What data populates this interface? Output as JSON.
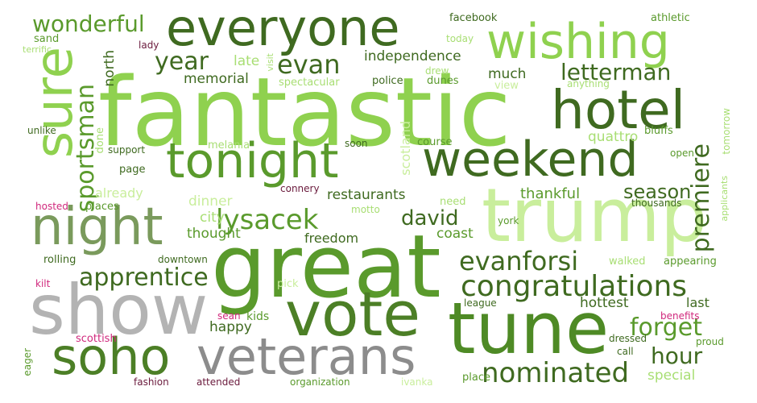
{
  "palette": {
    "dark_green": "#3f6a20",
    "mid_green": "#5a9a2c",
    "light_green": "#8fd14f",
    "pale_green": "#c9ee9c",
    "grey": "#a9a9a9",
    "pink": "#d0287c",
    "maroon": "#6a1a3c"
  },
  "words": {
    "fantastic": "fantastic",
    "great": "great",
    "trump": "trump",
    "show": "show",
    "tune": "tune",
    "vote": "vote",
    "soho": "soho",
    "veterans": "veterans",
    "everyone": "everyone",
    "wishing": "wishing",
    "hotel": "hotel",
    "sure": "sure",
    "tonight": "tonight",
    "weekend": "weekend",
    "night": "night",
    "lysacek": "lysacek",
    "congratulations": "congratulations",
    "nominated": "nominated",
    "evanforsi": "evanforsi",
    "apprentice": "apprentice",
    "premiere": "premiere",
    "sportsman": "sportsman",
    "year": "year",
    "evan": "evan",
    "wonderful": "wonderful",
    "letterman": "letterman",
    "forget": "forget",
    "hour": "hour",
    "david": "david",
    "season": "season",
    "independence": "independence",
    "memorial": "memorial",
    "late": "late",
    "much": "much",
    "north": "north",
    "scotland": "scotland",
    "restaurants": "restaurants",
    "thankful": "thankful",
    "quattro": "quattro",
    "dinner": "dinner",
    "city": "city",
    "thought": "thought",
    "freedom": "freedom",
    "coast": "coast",
    "already": "already",
    "happy": "happy",
    "hottest": "hottest",
    "last": "last",
    "special": "special",
    "kids": "kids",
    "facebook": "facebook",
    "athletic": "athletic",
    "sand": "sand",
    "terrific": "terrific",
    "lady": "lady",
    "visit": "visit",
    "today": "today",
    "drew": "drew",
    "dunes": "dunes",
    "view": "view",
    "anything": "anything",
    "police": "police",
    "spectacular": "spectacular",
    "done": "done",
    "unlike": "unlike",
    "support": "support",
    "melania": "melania",
    "soon": "soon",
    "course": "course",
    "bluffs": "bluffs",
    "tomorrow": "tomorrow",
    "applicants": "applicants",
    "open": "open",
    "page": "page",
    "connery": "connery",
    "hosted": "hosted",
    "places": "places",
    "need": "need",
    "motto": "motto",
    "thousands": "thousands",
    "york": "york",
    "rolling": "rolling",
    "downtown": "downtown",
    "walked": "walked",
    "appearing": "appearing",
    "kilt": "kilt",
    "pick": "pick",
    "league": "league",
    "sean": "sean",
    "benefits": "benefits",
    "scottish": "scottish",
    "dressed": "dressed",
    "proud": "proud",
    "call": "call",
    "eager": "eager",
    "fashion": "fashion",
    "attended": "attended",
    "organization": "organization",
    "ivanka": "ivanka",
    "place": "place"
  }
}
